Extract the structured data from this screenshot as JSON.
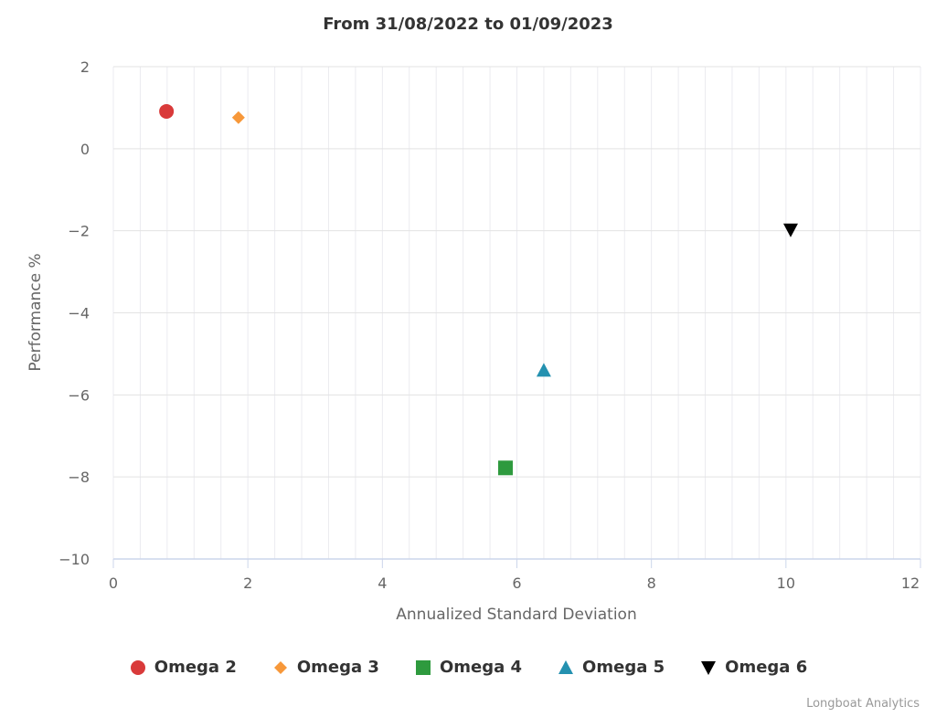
{
  "chart_data": {
    "type": "scatter",
    "title": "From 31/08/2022 to 01/09/2023",
    "xlabel": "Annualized Standard Deviation",
    "ylabel": "Performance %",
    "xlim": [
      0,
      12
    ],
    "ylim": [
      -10,
      2
    ],
    "x_ticks": [
      "0",
      "2",
      "4",
      "6",
      "8",
      "10",
      "12"
    ],
    "y_ticks": [
      "2",
      "0",
      "−2",
      "−4",
      "−6",
      "−8",
      "−10"
    ],
    "grid": true,
    "legend_position": "bottom",
    "series": [
      {
        "name": "Omega 2",
        "marker": "circle",
        "color": "#d93a3a",
        "x": 0.79,
        "y": 0.91
      },
      {
        "name": "Omega 3",
        "marker": "diamond",
        "color": "#f7983a",
        "x": 1.86,
        "y": 0.76
      },
      {
        "name": "Omega 4",
        "marker": "square",
        "color": "#2e9a3e",
        "x": 5.83,
        "y": -7.78
      },
      {
        "name": "Omega 5",
        "marker": "triangle",
        "color": "#2491b0",
        "x": 6.4,
        "y": -5.4
      },
      {
        "name": "Omega 6",
        "marker": "triangle-down",
        "color": "#000000",
        "x": 10.07,
        "y": -1.98
      }
    ]
  },
  "credit": "Longboat Analytics"
}
